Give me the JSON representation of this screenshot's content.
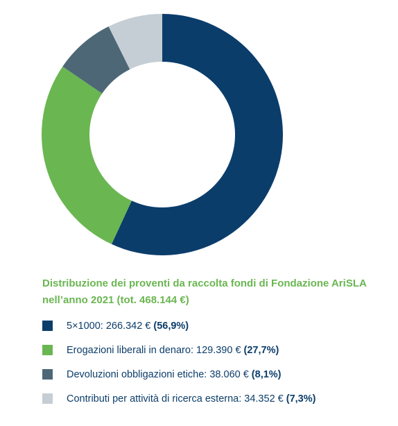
{
  "chart_data": {
    "type": "pie",
    "variant": "donut",
    "title": "Distribuzione dei proventi da raccolta fondi di Fondazione AriSLA nell’anno 2021 (tot. 468.144 €)",
    "legend_position": "bottom",
    "slices": [
      {
        "label": "5×1000: 266.342 €",
        "value": 266342,
        "percent_label": "(56,9%)",
        "percent": 56.9,
        "color": "#0b3d6b"
      },
      {
        "label": "Erogazioni liberali in denaro: 129.390 €",
        "value": 129390,
        "percent_label": "(27,7%)",
        "percent": 27.7,
        "color": "#6ab651"
      },
      {
        "label": "Devoluzioni obbligazioni etiche: 38.060 €",
        "value": 38060,
        "percent_label": "(8,1%)",
        "percent": 8.1,
        "color": "#4d6776"
      },
      {
        "label": "Contributi per attività di ricerca esterna: 34.352 €",
        "value": 34352,
        "percent_label": "(7,3%)",
        "percent": 7.3,
        "color": "#c5ced4"
      }
    ]
  }
}
